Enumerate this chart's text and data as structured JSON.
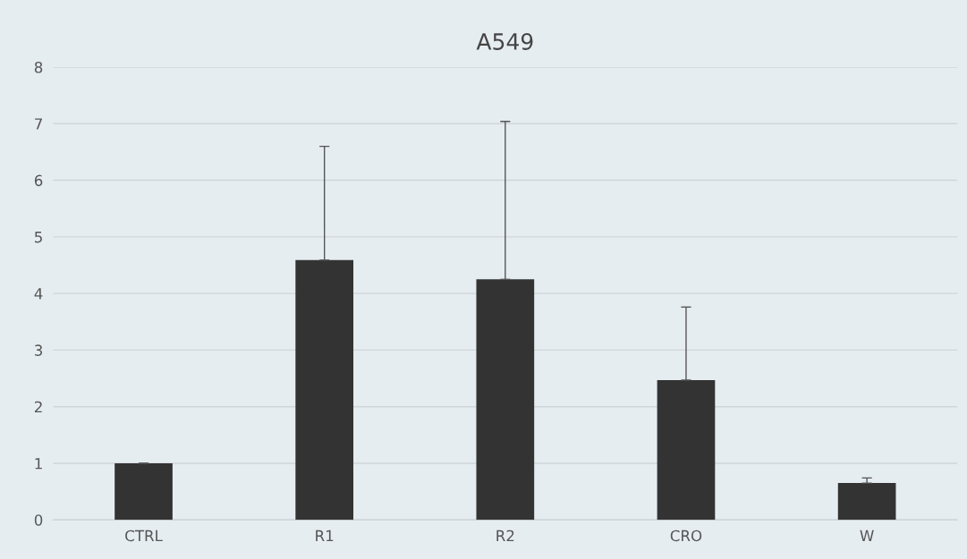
{
  "chart_data": {
    "type": "bar",
    "title": "A549",
    "categories": [
      "CTRL",
      "R1",
      "R2",
      "CRO",
      "W"
    ],
    "values": [
      1.0,
      4.59,
      4.25,
      2.47,
      0.65
    ],
    "errors": [
      [
        1.0,
        1.0
      ],
      [
        4.59,
        6.6
      ],
      [
        4.25,
        7.04
      ],
      [
        2.47,
        3.76
      ],
      [
        0.65,
        0.74
      ]
    ],
    "color": "#333333",
    "ylim": [
      0,
      8
    ],
    "yticks": [
      0,
      1,
      2,
      3,
      4,
      5,
      6,
      7,
      8
    ],
    "grid": "y",
    "legend": false
  }
}
